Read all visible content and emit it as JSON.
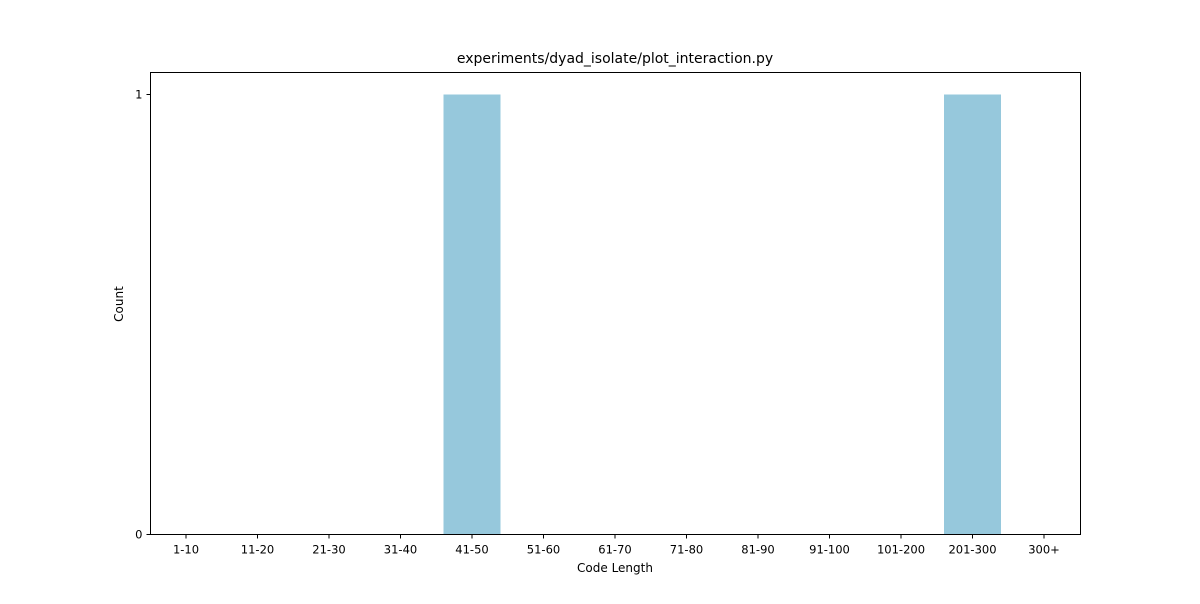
{
  "chart_data": {
    "type": "bar",
    "title": "experiments/dyad_isolate/plot_interaction.py",
    "xlabel": "Code Length",
    "ylabel": "Count",
    "categories": [
      "1-10",
      "11-20",
      "21-30",
      "31-40",
      "41-50",
      "51-60",
      "61-70",
      "71-80",
      "81-90",
      "91-100",
      "101-200",
      "201-300",
      "300+"
    ],
    "values": [
      0,
      0,
      0,
      0,
      1,
      0,
      0,
      0,
      0,
      0,
      0,
      1,
      0
    ],
    "yticks": [
      0,
      1
    ],
    "ylim": [
      0,
      1.05
    ],
    "grid": false,
    "bar_color": "#96c8dc"
  }
}
